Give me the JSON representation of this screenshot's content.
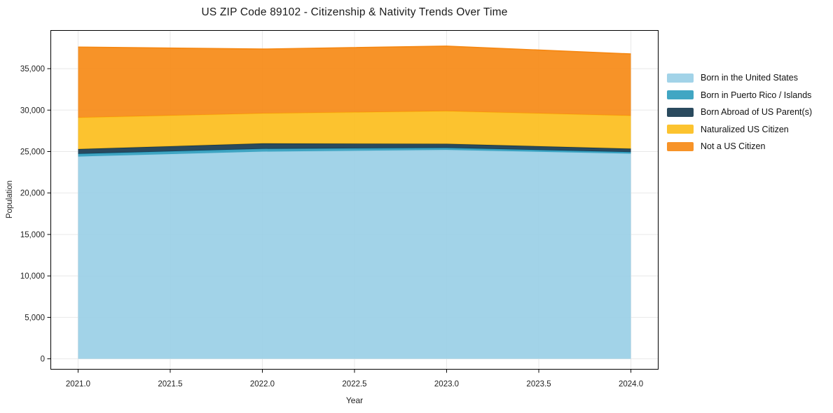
{
  "page": {
    "background": "#ffffff"
  },
  "chart_data": {
    "type": "area",
    "stacked": true,
    "title": "US ZIP Code 89102 - Citizenship & Nativity Trends Over Time",
    "xlabel": "Year",
    "ylabel": "Population",
    "x": [
      2021,
      2022,
      2023,
      2024
    ],
    "series": [
      {
        "name": "Born in the United States",
        "color": "#98cee5",
        "values": [
          24400,
          25000,
          25200,
          24750
        ]
      },
      {
        "name": "Born in Puerto Rico / Islands",
        "color": "#2c9cbd",
        "values": [
          320,
          330,
          250,
          180
        ]
      },
      {
        "name": "Born Abroad of US Parent(s)",
        "color": "#13364c",
        "values": [
          580,
          650,
          480,
          420
        ]
      },
      {
        "name": "Naturalized US Citizen",
        "color": "#fcbc18",
        "values": [
          3800,
          3620,
          3950,
          3980
        ]
      },
      {
        "name": "Not a US Citizen",
        "color": "#f68711",
        "values": [
          8500,
          7760,
          7840,
          7440
        ]
      }
    ],
    "totals": [
      37600,
      37360,
      37720,
      36770
    ],
    "xlim": [
      2020.85,
      2024.15
    ],
    "ylim": [
      -1300,
      39650
    ],
    "xticks": [
      2021.0,
      2021.5,
      2022.0,
      2022.5,
      2023.0,
      2023.5,
      2024.0
    ],
    "yticks": [
      0,
      5000,
      10000,
      15000,
      20000,
      25000,
      30000,
      35000
    ],
    "grid": true,
    "grid_color": "#e8e8e8",
    "spine_color": "#000000",
    "tick_label_color": "#222222",
    "fill_alpha": 0.9,
    "legend_position": "right-outside"
  }
}
